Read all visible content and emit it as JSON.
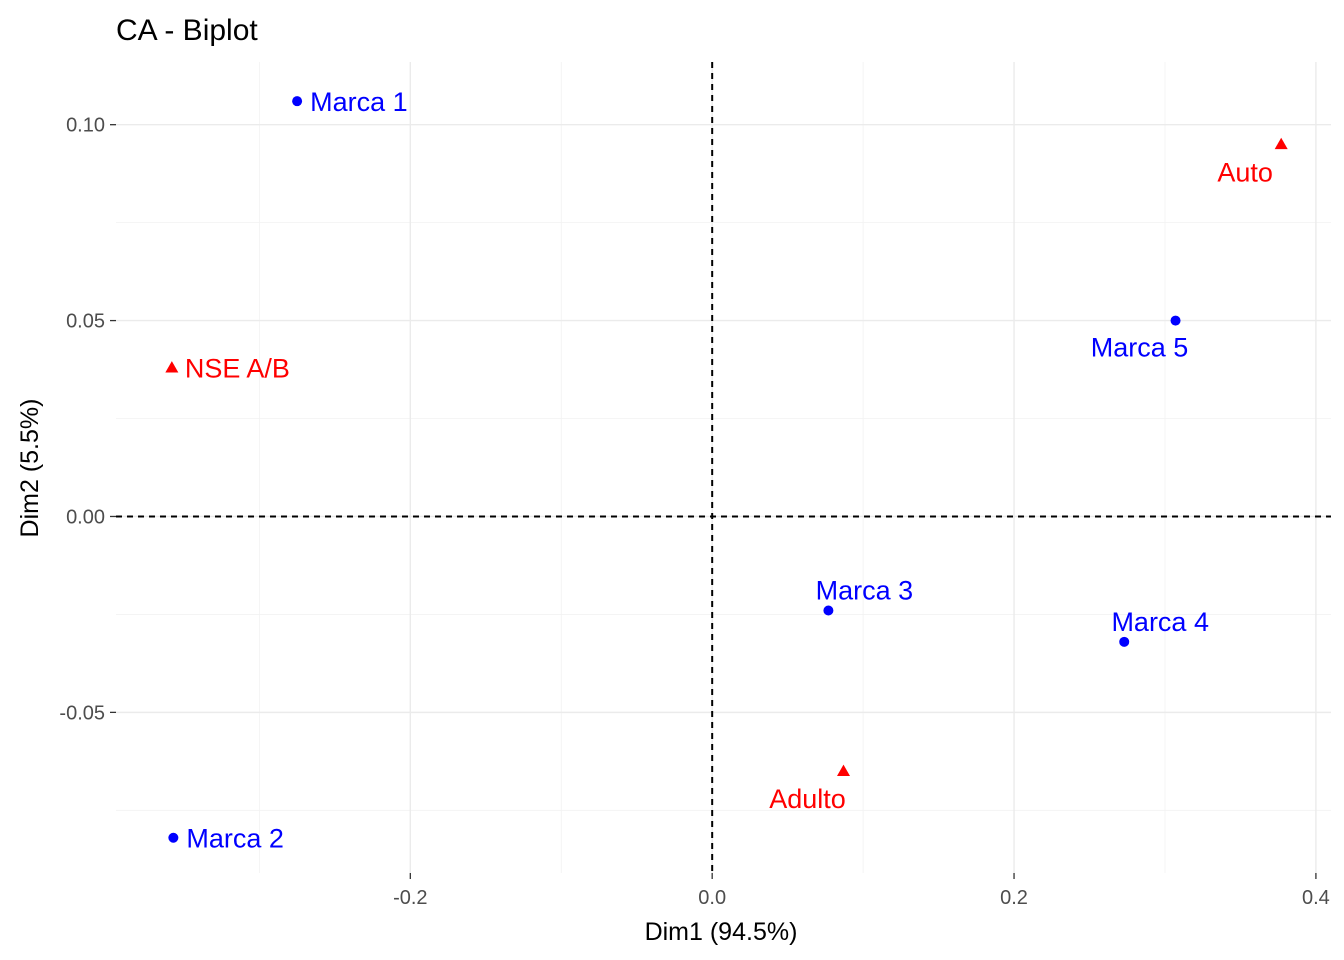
{
  "chart_data": {
    "type": "scatter",
    "title": "CA - Biplot",
    "xlabel": "Dim1 (94.5%)",
    "ylabel": "Dim2 (5.5%)",
    "xlim": [
      -0.395,
      0.41
    ],
    "ylim": [
      -0.091,
      0.116
    ],
    "x_ticks": [
      -0.2,
      0.0,
      0.2,
      0.4
    ],
    "x_tick_labels": [
      "-0.2",
      "0.0",
      "0.2",
      "0.4"
    ],
    "y_ticks": [
      -0.05,
      0.0,
      0.05,
      0.1
    ],
    "y_tick_labels": [
      "-0.05",
      "0.00",
      "0.05",
      "0.10"
    ],
    "grid": true,
    "reference_lines": {
      "x": 0,
      "y": 0,
      "style": "dashed"
    },
    "series": [
      {
        "marker": "circle",
        "color": "#0000FF",
        "points": [
          {
            "label": "Marca 1",
            "x": -0.275,
            "y": 0.106,
            "label_pos": "right"
          },
          {
            "label": "Marca 2",
            "x": -0.357,
            "y": -0.082,
            "label_pos": "right"
          },
          {
            "label": "Marca 3",
            "x": 0.077,
            "y": -0.024,
            "label_pos": "above"
          },
          {
            "label": "Marca 4",
            "x": 0.273,
            "y": -0.032,
            "label_pos": "above"
          },
          {
            "label": "Marca 5",
            "x": 0.307,
            "y": 0.05,
            "label_pos": "below"
          }
        ]
      },
      {
        "marker": "triangle",
        "color": "#FF0000",
        "points": [
          {
            "label": "NSE A/B",
            "x": -0.358,
            "y": 0.038,
            "label_pos": "right"
          },
          {
            "label": "Auto",
            "x": 0.377,
            "y": 0.095,
            "label_pos": "below-left"
          },
          {
            "label": "Adulto",
            "x": 0.087,
            "y": -0.065,
            "label_pos": "below-left"
          }
        ]
      }
    ]
  }
}
